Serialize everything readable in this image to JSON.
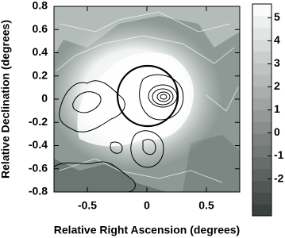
{
  "chart_data": {
    "type": "contour",
    "x_label": "Relative Right Ascension (degrees)",
    "y_label": "Relative Declination (degrees)",
    "xlim": [
      -0.78,
      0.78
    ],
    "ylim": [
      -0.8,
      0.8
    ],
    "xticks": [
      -0.5,
      0,
      0.5
    ],
    "yticks": [
      0.8,
      0.6,
      0.4,
      0.2,
      0,
      -0.2,
      -0.4,
      -0.6,
      -0.8
    ],
    "colorbar": {
      "lim": [
        -3.6,
        5.6
      ],
      "ticks": [
        5,
        4,
        3,
        2,
        1,
        0,
        -1,
        -2
      ],
      "cmap": [
        "#343c39",
        "#ffffff"
      ]
    }
  }
}
